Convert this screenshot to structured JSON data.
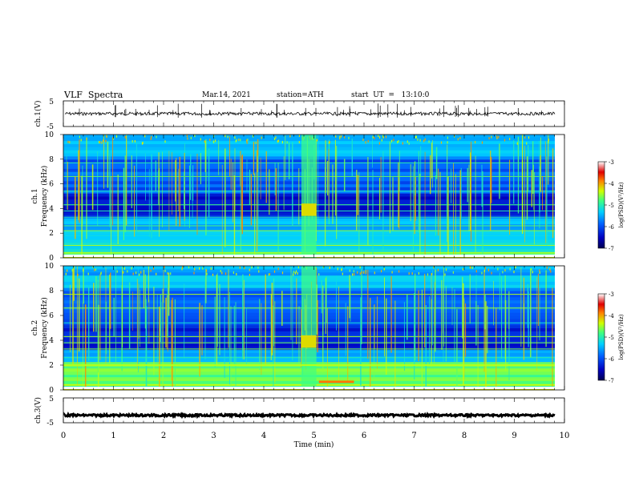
{
  "header": {
    "title": "VLF  Spectra",
    "date": "Mar.14, 2021",
    "station": "station=ATH",
    "start": "start  UT  =   13:10:0"
  },
  "colors": {
    "bg": "#ffffff",
    "axis": "#000000",
    "colormap": [
      "#000070",
      "#0010c8",
      "#0064ff",
      "#00c8ff",
      "#40ff80",
      "#d0ff00",
      "#ff8000",
      "#e00000",
      "#ffffff"
    ]
  },
  "chart_data": [
    {
      "type": "line",
      "id": "ch1",
      "ylabel": "ch.1(V)",
      "ytick_labels": [
        "5",
        "-5"
      ],
      "ylim": [
        -5,
        5
      ],
      "xlim": [
        0,
        10
      ],
      "baseline": 0,
      "x_end": 9.8,
      "description_of_series": "broadband waveform fluctuating near 0 V with sparse spikes"
    },
    {
      "type": "heatmap",
      "id": "ch1-spectrogram",
      "ylabel": "Frequency (kHz)",
      "channel_label": "ch.1",
      "ytick_labels": [
        "0",
        "2",
        "4",
        "6",
        "8",
        "10"
      ],
      "ylim": [
        0,
        10
      ],
      "xlim": [
        0,
        10
      ],
      "x_end": 9.8,
      "burst": {
        "t_start": 4.75,
        "t_end": 5.05,
        "f_low": 3.4,
        "f_high": 4.4
      }
    },
    {
      "type": "heatmap",
      "id": "ch2-spectrogram",
      "ylabel": "Frequency (kHz)",
      "channel_label": "ch.2",
      "ytick_labels": [
        "0",
        "2",
        "4",
        "6",
        "8",
        "10"
      ],
      "ylim": [
        0,
        10
      ],
      "xlim": [
        0,
        10
      ],
      "x_end": 9.8,
      "burst": {
        "t_start": 4.75,
        "t_end": 5.05,
        "f_low": 3.4,
        "f_high": 4.4
      }
    },
    {
      "type": "line",
      "id": "ch3",
      "ylabel": "ch.3(V)",
      "ytick_labels": [
        "5",
        "-5"
      ],
      "ylim": [
        -5,
        5
      ],
      "xlim": [
        0,
        10
      ],
      "baseline": -2,
      "x_end": 9.8
    }
  ],
  "xaxis": {
    "label": "Time  (min)",
    "tick_labels": [
      "0",
      "1",
      "2",
      "3",
      "4",
      "5",
      "6",
      "7",
      "8",
      "9",
      "10"
    ]
  },
  "colorbar": {
    "label": "log(PSD)(V²/Hz)",
    "tick_labels": [
      "-3",
      "-4",
      "-5",
      "-6",
      "-7"
    ],
    "range": [
      -7,
      -3
    ]
  }
}
